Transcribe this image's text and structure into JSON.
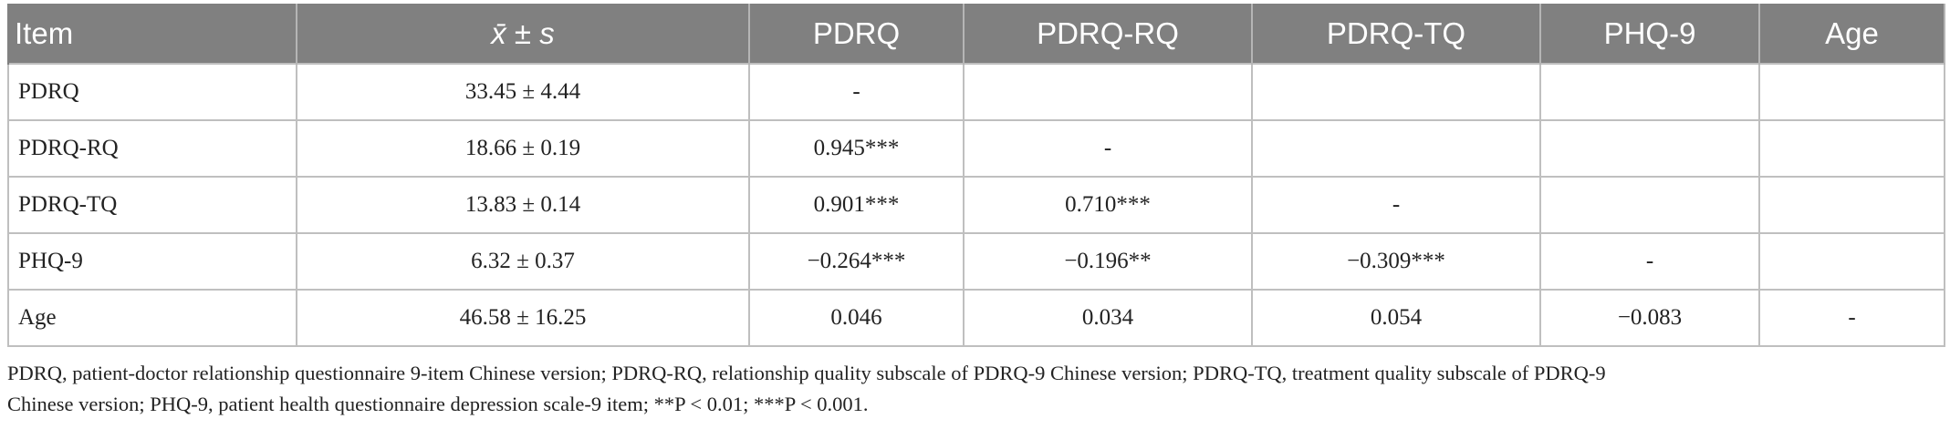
{
  "header": {
    "item": "Item",
    "mean_sd": "x̄ ± s",
    "pdrq": "PDRQ",
    "pdrq_rq": "PDRQ-RQ",
    "pdrq_tq": "PDRQ-TQ",
    "phq9": "PHQ-9",
    "age": "Age"
  },
  "rows": [
    {
      "item": "PDRQ",
      "mean_sd": "33.45 ± 4.44",
      "pdrq": "-",
      "pdrq_rq": "",
      "pdrq_tq": "",
      "phq9": "",
      "age": ""
    },
    {
      "item": "PDRQ-RQ",
      "mean_sd": "18.66 ± 0.19",
      "pdrq": "0.945***",
      "pdrq_rq": "-",
      "pdrq_tq": "",
      "phq9": "",
      "age": ""
    },
    {
      "item": "PDRQ-TQ",
      "mean_sd": "13.83 ± 0.14",
      "pdrq": "0.901***",
      "pdrq_rq": "0.710***",
      "pdrq_tq": "-",
      "phq9": "",
      "age": ""
    },
    {
      "item": "PHQ-9",
      "mean_sd": "6.32 ± 0.37",
      "pdrq": "−0.264***",
      "pdrq_rq": "−0.196**",
      "pdrq_tq": "−0.309***",
      "phq9": "-",
      "age": ""
    },
    {
      "item": "Age",
      "mean_sd": "46.58 ± 16.25",
      "pdrq": "0.046",
      "pdrq_rq": "0.034",
      "pdrq_tq": "0.054",
      "phq9": "−0.083",
      "age": "-"
    }
  ],
  "footnote": {
    "line1": "PDRQ, patient-doctor relationship questionnaire 9-item Chinese version; PDRQ-RQ, relationship quality subscale of PDRQ-9 Chinese version; PDRQ-TQ, treatment quality subscale of PDRQ-9",
    "line2": "Chinese version; PHQ-9, patient health questionnaire depression scale-9 item; **P < 0.01; ***P < 0.001."
  }
}
